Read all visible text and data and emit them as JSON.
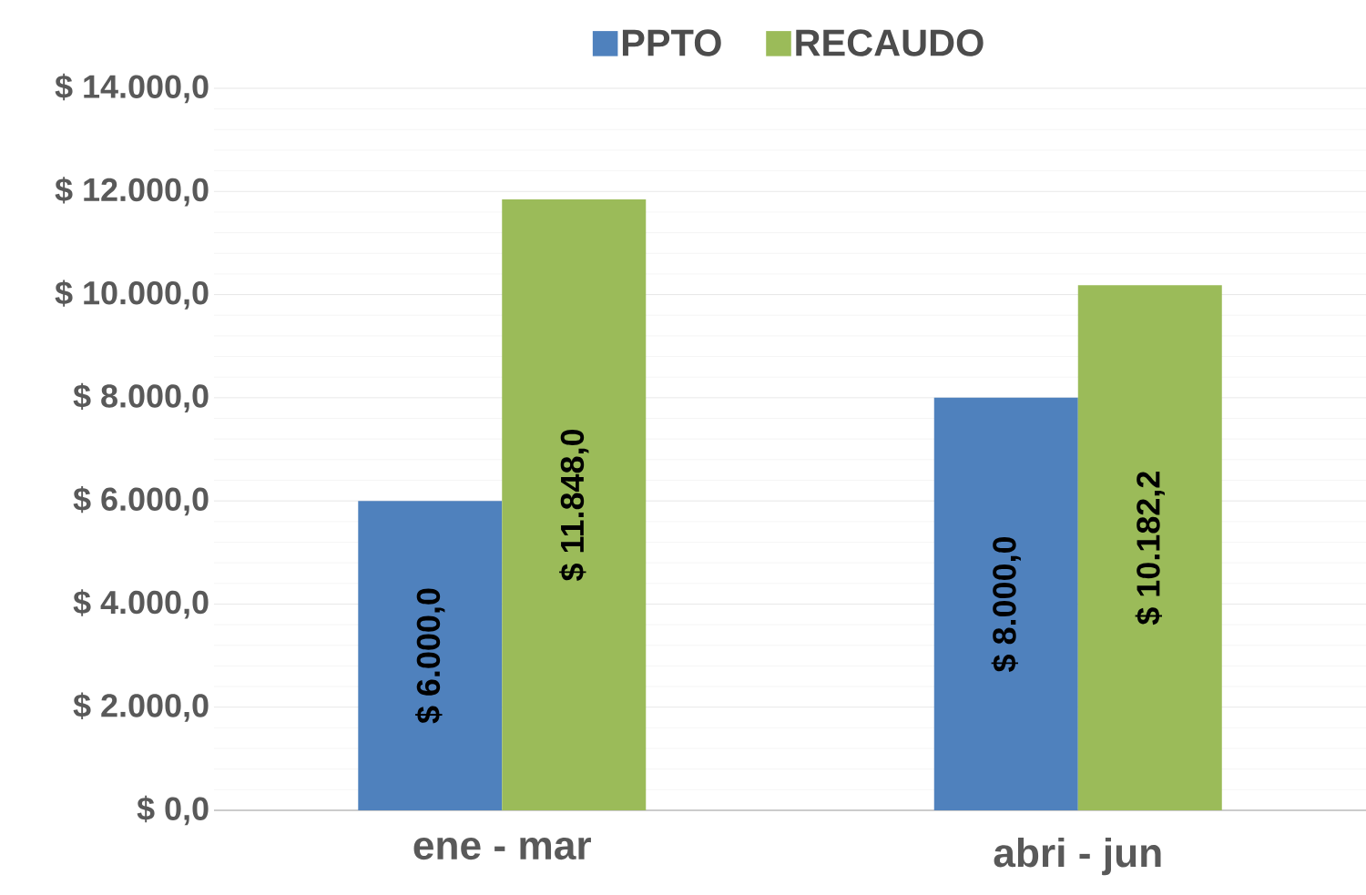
{
  "chart_data": {
    "type": "bar",
    "categories": [
      "ene - mar",
      "abri - jun"
    ],
    "series": [
      {
        "name": "PPTO",
        "color": "#4f81bd",
        "values": [
          6000,
          8000
        ],
        "value_labels": [
          "$ 6.000,0",
          "$ 8.000,0"
        ]
      },
      {
        "name": "RECAUDO",
        "color": "#9bbb59",
        "values": [
          11848,
          10182.2
        ],
        "value_labels": [
          "$ 11.848,0",
          "$ 10.182,2"
        ]
      }
    ],
    "ylim": [
      0,
      14000
    ],
    "yticks": [
      {
        "value": 0,
        "label": "$ 0,0"
      },
      {
        "value": 2000,
        "label": "$ 2.000,0"
      },
      {
        "value": 4000,
        "label": "$ 4.000,0"
      },
      {
        "value": 6000,
        "label": "$ 6.000,0"
      },
      {
        "value": 8000,
        "label": "$ 8.000,0"
      },
      {
        "value": 10000,
        "label": "$ 10.000,0"
      },
      {
        "value": 12000,
        "label": "$ 12.000,0"
      },
      {
        "value": 14000,
        "label": "$ 14.000,0"
      }
    ],
    "grid": "y",
    "legend": "top"
  }
}
